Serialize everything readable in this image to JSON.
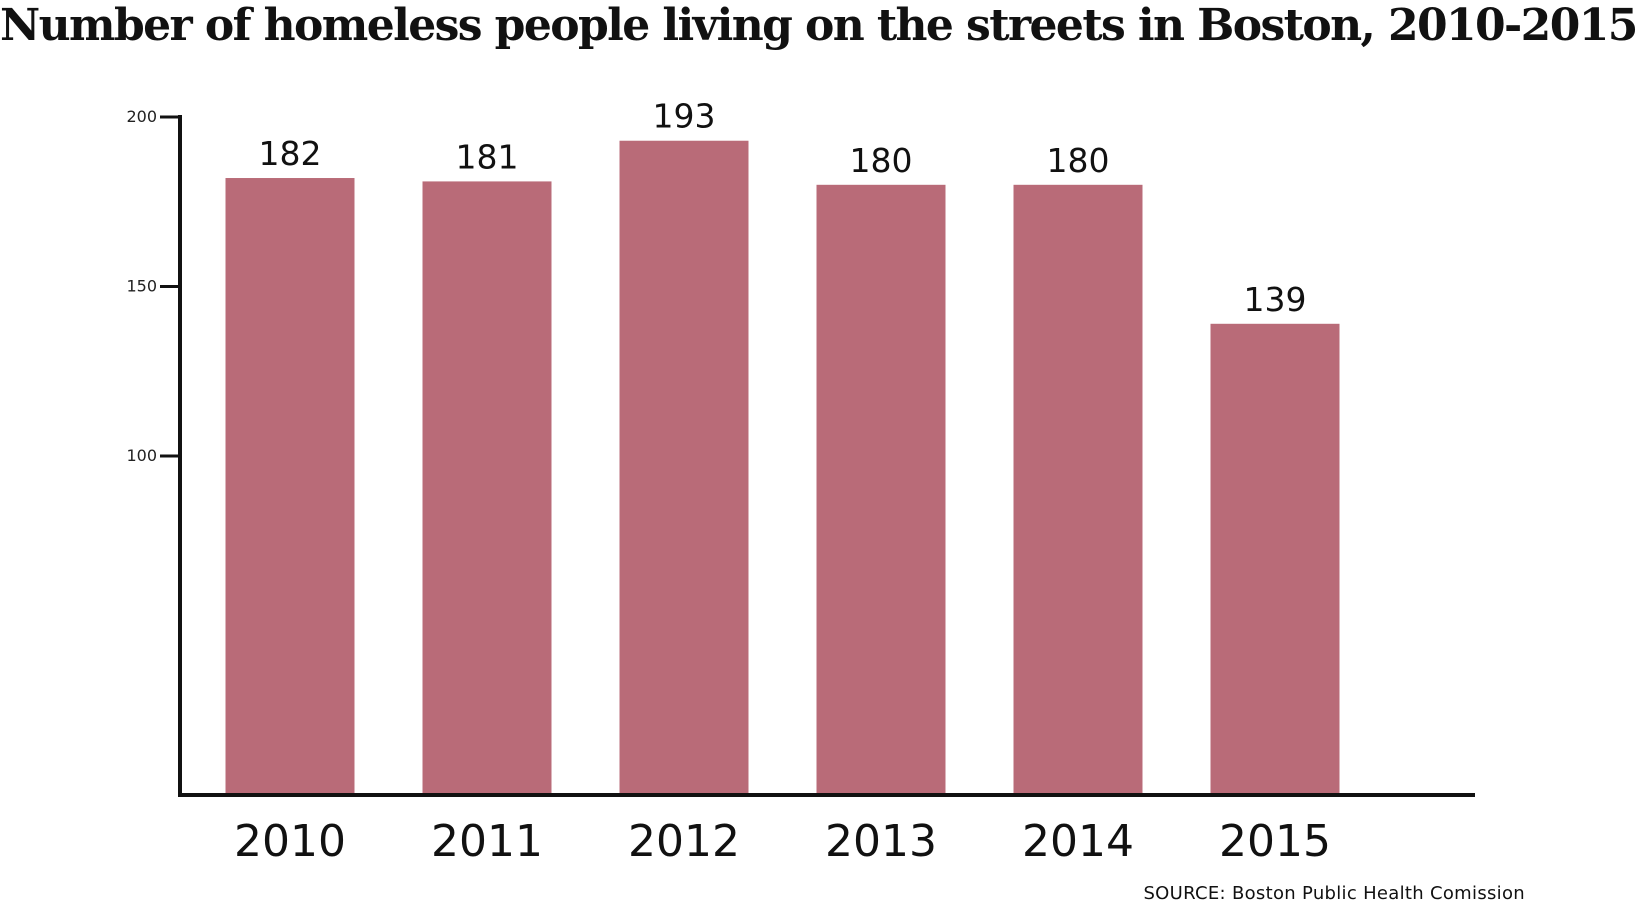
{
  "chart_data": {
    "type": "bar",
    "title": "Number of homeless people living on the streets in Boston, 2010-2015",
    "categories": [
      "2010",
      "2011",
      "2012",
      "2013",
      "2014",
      "2015"
    ],
    "values": [
      182,
      181,
      193,
      180,
      180,
      139
    ],
    "data_labels": [
      "182",
      "181",
      "193",
      "180",
      "180",
      "139"
    ],
    "y_ticks": [
      100,
      150,
      200
    ],
    "y_tick_labels": [
      "100",
      "150",
      "200"
    ],
    "ylim": [
      0,
      200
    ],
    "grid": false,
    "source": "SOURCE: Boston Public Health Comission",
    "colors": {
      "bar": "#b96b78",
      "axis": "#111111"
    }
  }
}
